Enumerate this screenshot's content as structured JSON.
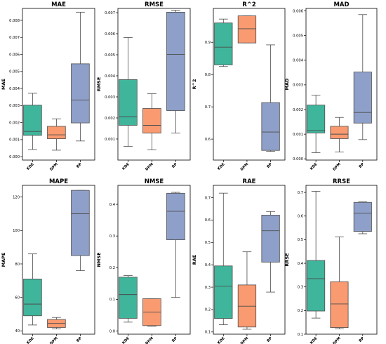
{
  "chart_data": [
    {
      "type": "box",
      "title": "MAE",
      "ylabel": "MAE",
      "categories": [
        "KDE",
        "DPM",
        "BP"
      ],
      "colors": [
        "#3fb59b",
        "#f99a70",
        "#8ea0c9"
      ],
      "ylim": [
        -0.0002,
        0.0087
      ],
      "yticks": [
        0.0,
        0.001,
        0.002,
        0.003,
        0.004,
        0.005,
        0.006,
        0.007,
        0.008
      ],
      "yticklabels": [
        "0.000",
        "0.001",
        "0.002",
        "0.003",
        "0.004",
        "0.005",
        "0.006",
        "0.007",
        "0.008"
      ],
      "boxes": [
        {
          "min": 0.00042,
          "q1": 0.00125,
          "median": 0.00148,
          "q3": 0.00302,
          "max": 0.00372
        },
        {
          "min": 0.00038,
          "q1": 0.00105,
          "median": 0.00128,
          "q3": 0.00178,
          "max": 0.00222
        },
        {
          "min": 0.00092,
          "q1": 0.00198,
          "median": 0.00332,
          "q3": 0.00545,
          "max": 0.00848
        }
      ]
    },
    {
      "type": "box",
      "title": "RMSE",
      "ylabel": "RMSE",
      "categories": [
        "KDE",
        "DPM",
        "BP"
      ],
      "colors": [
        "#3fb59b",
        "#f99a70",
        "#8ea0c9"
      ],
      "ylim": [
        0.0,
        0.0072
      ],
      "yticks": [
        0.001,
        0.002,
        0.003,
        0.004,
        0.005,
        0.006,
        0.007
      ],
      "yticklabels": [
        "0.001",
        "0.002",
        "0.003",
        "0.004",
        "0.005",
        "0.006",
        "0.007"
      ],
      "boxes": [
        {
          "min": 0.00065,
          "q1": 0.00165,
          "median": 0.00205,
          "q3": 0.00382,
          "max": 0.00582
        },
        {
          "min": 0.00048,
          "q1": 0.00128,
          "median": 0.00165,
          "q3": 0.00245,
          "max": 0.00315
        },
        {
          "min": 0.00128,
          "q1": 0.00235,
          "median": 0.00502,
          "q3": 0.00702,
          "max": 0.00712
        }
      ]
    },
    {
      "type": "box",
      "title": "R^2",
      "ylabel": "R^2",
      "categories": [
        "KDE",
        "DPM",
        "BP"
      ],
      "colors": [
        "#3fb59b",
        "#f99a70",
        "#8ea0c9"
      ],
      "ylim": [
        0.535,
        1.005
      ],
      "yticks": [
        0.6,
        0.7,
        0.8,
        0.9
      ],
      "yticklabels": [
        "0.6",
        "0.7",
        "0.8",
        "0.9"
      ],
      "boxes": [
        {
          "min": 0.825,
          "q1": 0.83,
          "median": 0.885,
          "q3": 0.96,
          "max": 0.972
        },
        {
          "min": 0.898,
          "q1": 0.898,
          "median": 0.942,
          "q3": 0.982,
          "max": 0.982
        },
        {
          "min": 0.562,
          "q1": 0.565,
          "median": 0.622,
          "q3": 0.713,
          "max": 0.892
        }
      ]
    },
    {
      "type": "box",
      "title": "MAD",
      "ylabel": "MAD",
      "categories": [
        "KDE",
        "DPM",
        "BP"
      ],
      "colors": [
        "#3fb59b",
        "#f99a70",
        "#8ea0c9"
      ],
      "ylim": [
        -5e-05,
        0.0061
      ],
      "yticks": [
        0.0,
        0.001,
        0.002,
        0.003,
        0.004,
        0.005,
        0.006
      ],
      "yticklabels": [
        "0.000",
        "0.001",
        "0.002",
        "0.003",
        "0.004",
        "0.005",
        "0.006"
      ],
      "boxes": [
        {
          "min": 0.00025,
          "q1": 0.00105,
          "median": 0.00115,
          "q3": 0.00218,
          "max": 0.00258
        },
        {
          "min": 0.00028,
          "q1": 0.00082,
          "median": 0.001,
          "q3": 0.00132,
          "max": 0.00168
        },
        {
          "min": 0.00078,
          "q1": 0.00145,
          "median": 0.00188,
          "q3": 0.00352,
          "max": 0.00585
        }
      ]
    },
    {
      "type": "box",
      "title": "MAPE",
      "ylabel": "MAPE",
      "categories": [
        "KDE",
        "DPM",
        "BP"
      ],
      "colors": [
        "#3fb59b",
        "#f99a70",
        "#8ea0c9"
      ],
      "ylim": [
        38,
        127
      ],
      "yticks": [
        40,
        60,
        80,
        100,
        120
      ],
      "yticklabels": [
        "40",
        "60",
        "80",
        "100",
        "120"
      ],
      "boxes": [
        {
          "min": 43.5,
          "q1": 49,
          "median": 56,
          "q3": 71,
          "max": 86
        },
        {
          "min": 41.2,
          "q1": 42,
          "median": 44.5,
          "q3": 46.8,
          "max": 48
        },
        {
          "min": 76,
          "q1": 85,
          "median": 110,
          "q3": 124,
          "max": 124
        }
      ]
    },
    {
      "type": "box",
      "title": "NMSE",
      "ylabel": "NMSE",
      "categories": [
        "KDE",
        "DPM",
        "BP"
      ],
      "colors": [
        "#3fb59b",
        "#f99a70",
        "#8ea0c9"
      ],
      "ylim": [
        -0.01,
        0.46
      ],
      "yticks": [
        0.0,
        0.1,
        0.2,
        0.3,
        0.4
      ],
      "yticklabels": [
        "0.0",
        "0.1",
        "0.2",
        "0.3",
        "0.4"
      ],
      "boxes": [
        {
          "min": 0.028,
          "q1": 0.04,
          "median": 0.115,
          "q3": 0.17,
          "max": 0.175
        },
        {
          "min": 0.015,
          "q1": 0.017,
          "median": 0.06,
          "q3": 0.102,
          "max": 0.102
        },
        {
          "min": 0.106,
          "q1": 0.288,
          "median": 0.378,
          "q3": 0.435,
          "max": 0.438
        }
      ]
    },
    {
      "type": "box",
      "title": "RAE",
      "ylabel": "RAE",
      "categories": [
        "KDE",
        "DPM",
        "BP"
      ],
      "colors": [
        "#3fb59b",
        "#f99a70",
        "#8ea0c9"
      ],
      "ylim": [
        0.09,
        0.755
      ],
      "yticks": [
        0.1,
        0.2,
        0.3,
        0.4,
        0.5,
        0.6,
        0.7
      ],
      "yticklabels": [
        "0.1",
        "0.2",
        "0.3",
        "0.4",
        "0.5",
        "0.6",
        "0.7"
      ],
      "boxes": [
        {
          "min": 0.132,
          "q1": 0.16,
          "median": 0.305,
          "q3": 0.395,
          "max": 0.72
        },
        {
          "min": 0.112,
          "q1": 0.122,
          "median": 0.215,
          "q3": 0.31,
          "max": 0.458
        },
        {
          "min": 0.278,
          "q1": 0.412,
          "median": 0.552,
          "q3": 0.622,
          "max": 0.638
        }
      ]
    },
    {
      "type": "box",
      "title": "RRSE",
      "ylabel": "RRSE",
      "categories": [
        "KDE",
        "DPM",
        "BP"
      ],
      "colors": [
        "#3fb59b",
        "#f99a70",
        "#8ea0c9"
      ],
      "ylim": [
        0.1,
        0.73
      ],
      "yticks": [
        0.1,
        0.2,
        0.3,
        0.4,
        0.5,
        0.6,
        0.7
      ],
      "yticklabels": [
        "0.1",
        "0.2",
        "0.3",
        "0.4",
        "0.5",
        "0.6",
        "0.7"
      ],
      "boxes": [
        {
          "min": 0.168,
          "q1": 0.198,
          "median": 0.335,
          "q3": 0.412,
          "max": 0.705
        },
        {
          "min": 0.123,
          "q1": 0.128,
          "median": 0.228,
          "q3": 0.322,
          "max": 0.512
        },
        {
          "min": 0.525,
          "q1": 0.535,
          "median": 0.612,
          "q3": 0.658,
          "max": 0.66
        }
      ]
    }
  ]
}
